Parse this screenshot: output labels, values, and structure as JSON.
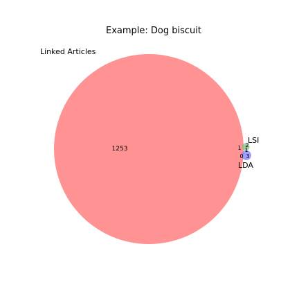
{
  "chart_data": {
    "type": "venn",
    "title": "Example: Dog biscuit",
    "sets": [
      {
        "name": "Linked Articles",
        "color": "#ff8080"
      },
      {
        "name": "LSI",
        "color": "#80c080"
      },
      {
        "name": "LDA",
        "color": "#8080ff"
      }
    ],
    "regions": [
      {
        "sets": [
          "Linked Articles"
        ],
        "value": 1253
      },
      {
        "sets": [
          "LSI"
        ],
        "value": 2
      },
      {
        "sets": [
          "Linked Articles",
          "LSI"
        ],
        "value": 1
      },
      {
        "sets": [
          "LSI",
          "LDA"
        ],
        "value": 1
      },
      {
        "sets": [
          "Linked Articles",
          "LSI",
          "LDA"
        ],
        "value": 0
      },
      {
        "sets": [
          "LDA"
        ],
        "value": 3
      }
    ]
  }
}
